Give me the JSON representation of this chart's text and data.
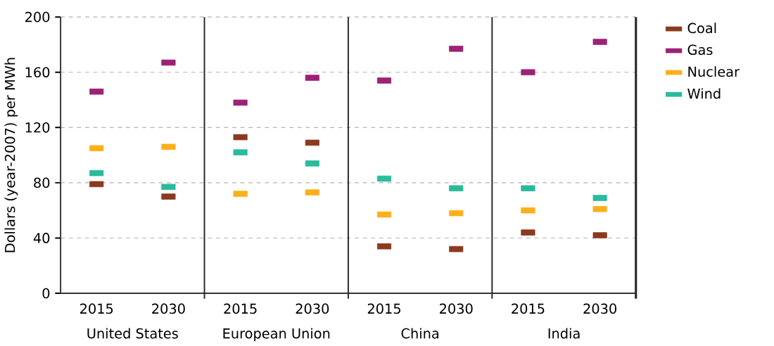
{
  "chart_data": {
    "type": "scatter",
    "ylabel": "Dollars (year-2007) per MWh",
    "categories": [
      "2015",
      "2030",
      "2015",
      "2030",
      "2015",
      "2030",
      "2015",
      "2030"
    ],
    "annotations": [
      "United States",
      "European Union",
      "China",
      "India"
    ],
    "series": [
      {
        "name": "Coal",
        "color": "#8b3a1e",
        "values": [
          79,
          70,
          113,
          109,
          34,
          32,
          44,
          42
        ]
      },
      {
        "name": "Gas",
        "color": "#9b2275",
        "values": [
          146,
          167,
          138,
          156,
          154,
          177,
          160,
          182
        ]
      },
      {
        "name": "Nuclear",
        "color": "#fbb01b",
        "values": [
          105,
          106,
          72,
          73,
          57,
          58,
          60,
          61
        ]
      },
      {
        "name": "Wind",
        "color": "#29bb9c",
        "values": [
          87,
          77,
          102,
          94,
          83,
          76,
          76,
          69
        ]
      }
    ],
    "marker": "square",
    "ylim": [
      0,
      200
    ],
    "yticks": [
      0,
      40,
      80,
      120,
      160,
      200
    ],
    "grid": "y",
    "legend": "right"
  }
}
